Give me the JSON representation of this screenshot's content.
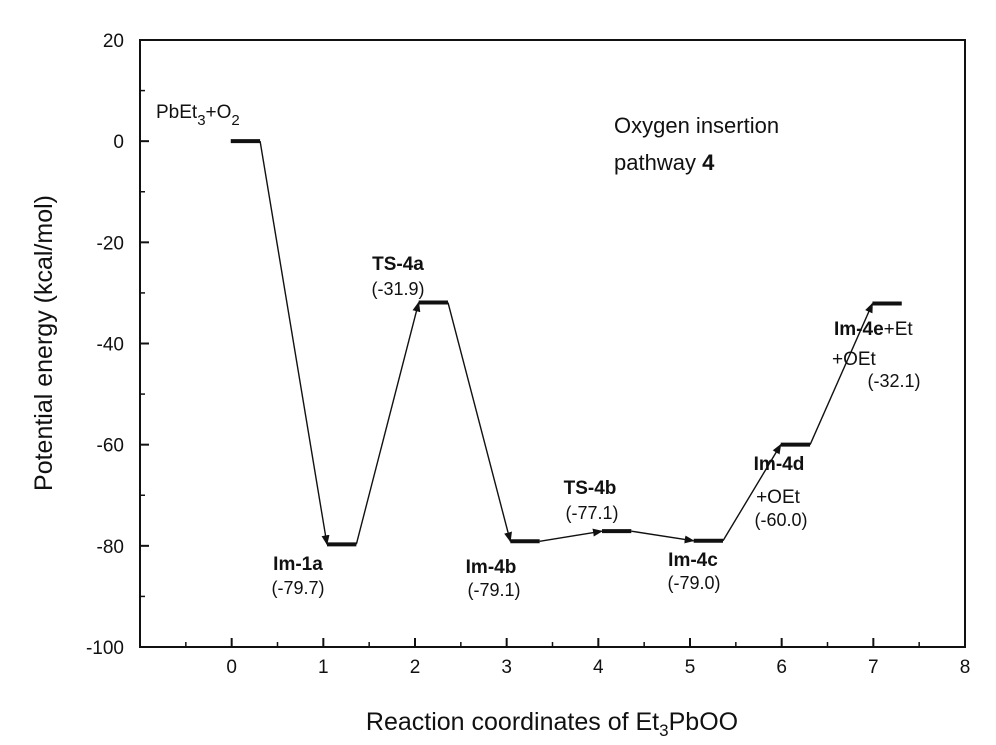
{
  "chart_data": {
    "type": "line",
    "xlabel": "Reaction coordinates of Et3PbOO",
    "xlabel_parts": {
      "pre": "Reaction coordinates of Et",
      "sub": "3",
      "post": "PbOO"
    },
    "ylabel": "Potential energy (kcal/mol)",
    "xlim": [
      -1,
      8
    ],
    "ylim": [
      -100,
      20
    ],
    "xticks": [
      0,
      1,
      2,
      3,
      4,
      5,
      6,
      7,
      8
    ],
    "yticks": [
      20,
      0,
      -20,
      -40,
      -60,
      -80,
      -100
    ],
    "annotation": {
      "line1": "Oxygen insertion",
      "line2_pre": "pathway ",
      "line2_bold": "4"
    },
    "reactant_label": {
      "a": "PbEt",
      "b": "3",
      "c": "+O",
      "d": "2"
    },
    "levels": [
      {
        "name": "PbEt3+O2",
        "x": 0.15,
        "y": 0.0
      },
      {
        "name": "Im-1a",
        "value": "(-79.7)",
        "x": 1.2,
        "y": -79.7
      },
      {
        "name": "TS-4a",
        "value": "(-31.9)",
        "x": 2.2,
        "y": -31.9
      },
      {
        "name": "Im-4b",
        "value": "(-79.1)",
        "x": 3.2,
        "y": -79.1
      },
      {
        "name": "TS-4b",
        "value": "(-77.1)",
        "x": 4.2,
        "y": -77.1
      },
      {
        "name": "Im-4c",
        "value": "(-79.0)",
        "x": 5.2,
        "y": -79.0
      },
      {
        "name": "Im-4d",
        "extra": "+OEt",
        "value": "(-60.0)",
        "x": 6.15,
        "y": -60.0
      },
      {
        "name": "Im-4e",
        "extra": "+Et",
        "extra2": "+OEt",
        "value": "(-32.1)",
        "x": 7.15,
        "y": -32.1
      }
    ]
  }
}
